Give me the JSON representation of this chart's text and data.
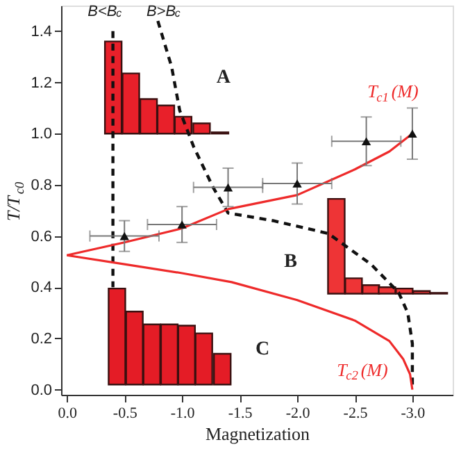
{
  "chart_data": {
    "type": "line",
    "xlabel": "Magnetization",
    "ylabel": "T/T$_{c0}$",
    "xlim": [
      0.05,
      -3.35
    ],
    "ylim": [
      -0.02,
      1.5
    ],
    "xticks": [
      {
        "value": 0,
        "label": "0.0"
      },
      -0.5,
      {
        "value": -1,
        "label": "-1.0"
      },
      -1.5,
      {
        "value": -2,
        "label": "-2.0"
      },
      -2.5,
      {
        "value": -3,
        "label": "-3.0"
      }
    ],
    "yticks": [
      {
        "value": 0,
        "label": "0.0"
      },
      0.2,
      0.4,
      0.6,
      0.8,
      {
        "value": 1,
        "label": "1.0"
      },
      1.2,
      1.4
    ],
    "series": [
      {
        "type": "bar",
        "color": "#e8202a",
        "x": [
          -0.403,
          -0.556,
          -0.71,
          -0.86,
          -1.01,
          -1.17,
          -1.33
        ],
        "base": [
          1.0,
          1.0,
          1.0,
          1.0,
          1.0,
          1.0,
          1.0
        ],
        "values": [
          0.36,
          0.235,
          0.135,
          0.11,
          0.066,
          0.04,
          0.005
        ]
      },
      {
        "type": "bar",
        "color": "#ee3436",
        "x": [
          -2.34,
          -2.49,
          -2.64,
          -2.78,
          -2.93,
          -3.08,
          -3.23
        ],
        "base": [
          0.375,
          0.375,
          0.375,
          0.375,
          0.375,
          0.375,
          0.375
        ],
        "values": [
          0.37,
          0.06,
          0.033,
          0.025,
          0.02,
          0.01,
          0.003
        ]
      },
      {
        "type": "bar",
        "color": "#e41c26",
        "x": [
          -0.435,
          -0.587,
          -0.738,
          -0.89,
          -1.04,
          -1.19,
          -1.35
        ],
        "base": [
          0.02,
          0.02,
          0.02,
          0.02,
          0.02,
          0.02,
          0.02
        ],
        "values": [
          0.375,
          0.285,
          0.235,
          0.235,
          0.23,
          0.2,
          0.12
        ]
      },
      {
        "color": "#111111",
        "line_style": "dashed",
        "x": [
          -0.4,
          -0.4
        ],
        "values": [
          1.4,
          0.4
        ]
      },
      {
        "color": "#111111",
        "line_style": "dashed",
        "x": [
          -0.79,
          -0.91,
          -0.98,
          -1.1,
          -1.27,
          -1.4,
          -1.79,
          -2.27,
          -2.64,
          -2.88,
          -2.96,
          -3.0,
          -3.0
        ],
        "values": [
          1.44,
          1.26,
          1.09,
          0.95,
          0.79,
          0.69,
          0.66,
          0.61,
          0.49,
          0.38,
          0.3,
          0.18,
          0.0
        ]
      },
      {
        "name": "T$_{c1}$(M)",
        "color": "#ee2a2a",
        "line_style": "solid",
        "x": [
          0,
          -0.5,
          -1.0,
          -1.4,
          -2.0,
          -2.5,
          -2.8,
          -3.0
        ],
        "values": [
          0.525,
          0.575,
          0.63,
          0.705,
          0.76,
          0.86,
          0.93,
          1.0
        ]
      },
      {
        "name": "T$_{c2}$(M)",
        "color": "#ee2a2a",
        "line_style": "solid",
        "x": [
          0,
          -0.5,
          -1.0,
          -1.43,
          -2.0,
          -2.5,
          -2.8,
          -2.92,
          -2.98,
          -3.0
        ],
        "values": [
          0.525,
          0.49,
          0.455,
          0.42,
          0.35,
          0.27,
          0.19,
          0.12,
          0.06,
          0.0
        ]
      },
      {
        "type": "scatter",
        "marker": "triangle",
        "color": "#111111",
        "x": [
          -0.5,
          -1.0,
          -1.4,
          -2.0,
          -2.6,
          -3.0
        ],
        "values": [
          0.6,
          0.645,
          0.79,
          0.805,
          0.97,
          1.0
        ],
        "errors": [
          0.06,
          0.07,
          0.075,
          0.08,
          0.095,
          0.1
        ],
        "xerrors": [
          0.3,
          0.3,
          0.3,
          0.3,
          0.3,
          null
        ]
      }
    ],
    "annotations": [
      "A",
      "B",
      "C",
      "B<B$_{c}$",
      "B>B$_{c}$"
    ]
  }
}
